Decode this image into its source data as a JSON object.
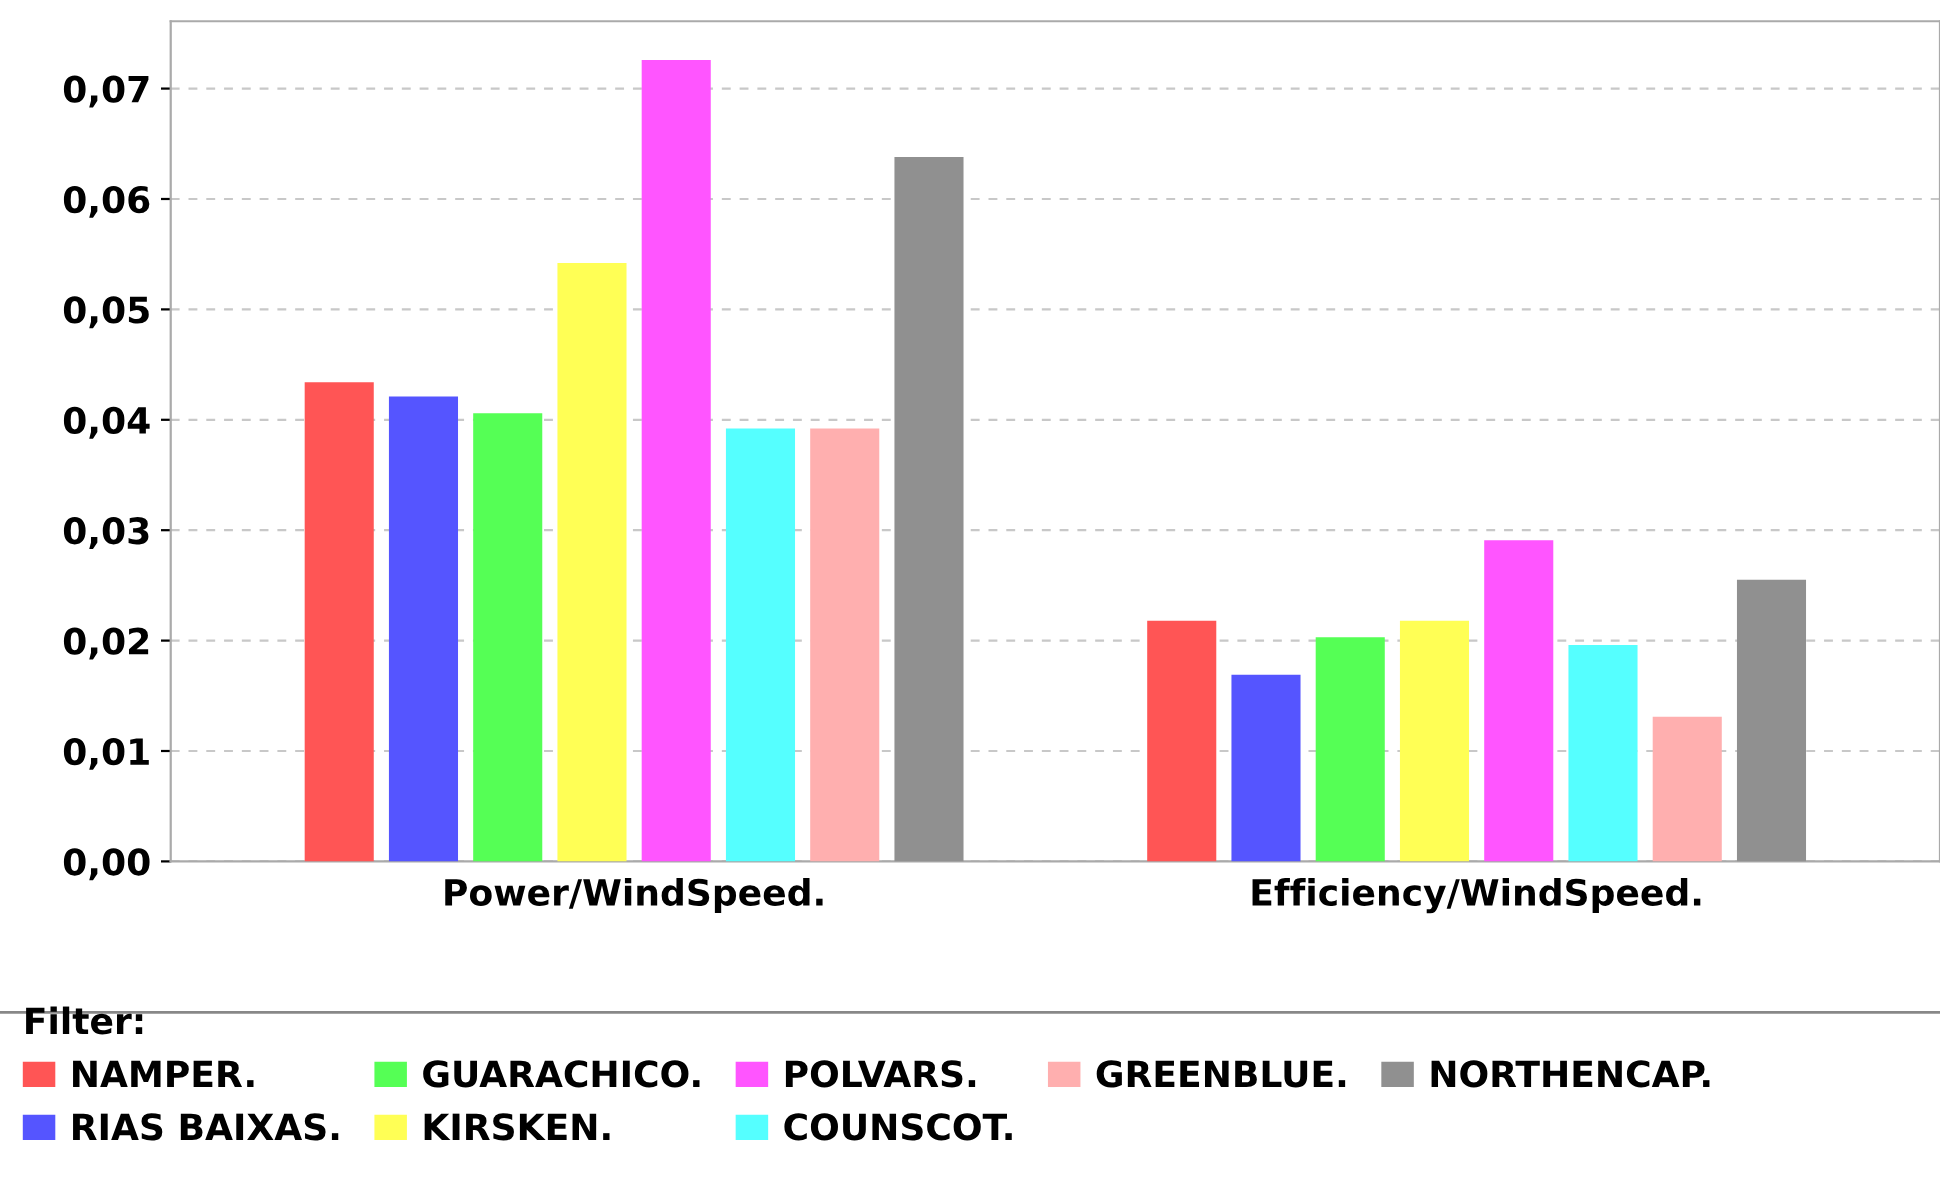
{
  "chart_data": {
    "type": "bar",
    "categories": [
      "Power/WindSpeed.",
      "Efficiency/WindSpeed."
    ],
    "series": [
      {
        "name": "NAMPER.",
        "color": "#ff5555",
        "values": [
          0.0434,
          0.0218
        ]
      },
      {
        "name": "RIAS BAIXAS.",
        "color": "#5555ff",
        "values": [
          0.0421,
          0.0169
        ]
      },
      {
        "name": "GUARACHICO.",
        "color": "#55ff55",
        "values": [
          0.0406,
          0.0203
        ]
      },
      {
        "name": "KIRSKEN.",
        "color": "#ffff55",
        "values": [
          0.0542,
          0.0218
        ]
      },
      {
        "name": "POLVARS.",
        "color": "#ff55ff",
        "values": [
          0.0726,
          0.0291
        ]
      },
      {
        "name": "COUNSCOT.",
        "color": "#55ffff",
        "values": [
          0.0392,
          0.0196
        ]
      },
      {
        "name": "GREENBLUE.",
        "color": "#ffafaf",
        "values": [
          0.0392,
          0.0131
        ]
      },
      {
        "name": "NORTHENCAP.",
        "color": "#909090",
        "values": [
          0.0638,
          0.0255
        ]
      }
    ],
    "legend_title": "Filter:",
    "legend": "bottom",
    "ylim": [
      0,
      0.0761
    ],
    "yticks": [
      {
        "value": 0,
        "label": "0,00"
      },
      {
        "value": 0.01,
        "label": "0,01"
      },
      {
        "value": 0.02,
        "label": "0,02"
      },
      {
        "value": 0.03,
        "label": "0,03"
      },
      {
        "value": 0.04,
        "label": "0,04"
      },
      {
        "value": 0.05,
        "label": "0,05"
      },
      {
        "value": 0.06,
        "label": "0,06"
      },
      {
        "value": 0.07,
        "label": "0,07"
      }
    ],
    "grid": "y"
  }
}
